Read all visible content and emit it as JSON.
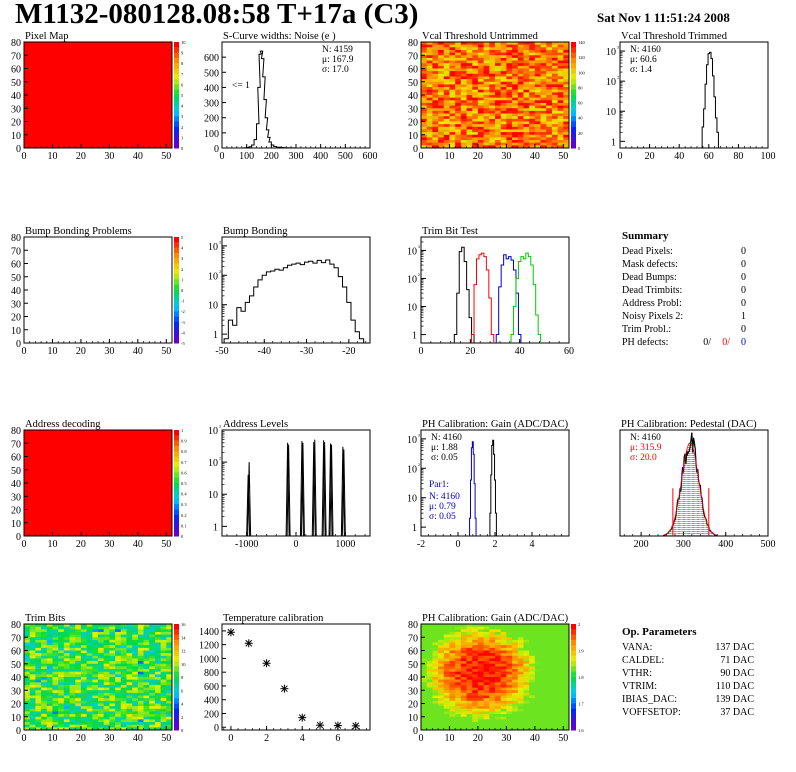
{
  "header": {
    "title": "M1132-080128.08:58 T+17a (C3)",
    "date": "Sat Nov  1 11:51:24 2008"
  },
  "colors": {
    "red": "#ff0000",
    "blue": "#0000cc",
    "green": "#00cc00",
    "black": "#000000",
    "white": "#ffffff"
  },
  "palette_names": [
    "violet",
    "blue",
    "cyan",
    "green",
    "yellow",
    "orange",
    "red"
  ],
  "chart_data": [
    {
      "id": "pixel-map",
      "type": "heatmap",
      "title": "Pixel Map",
      "xlim": [
        0,
        52
      ],
      "ylim": [
        0,
        80
      ],
      "xticks": [
        0,
        10,
        20,
        30,
        40,
        50
      ],
      "yticks": [
        0,
        10,
        20,
        30,
        40,
        50,
        60,
        70,
        80
      ],
      "fill": "uniform",
      "level": 1.0,
      "zticks": [
        "10",
        "9",
        "8",
        "7",
        "6",
        "5",
        "4",
        "3",
        "2",
        "1",
        "0"
      ]
    },
    {
      "id": "scurve-noise",
      "type": "line",
      "title": "S-Curve widths: Noise (e )",
      "xlim": [
        0,
        600
      ],
      "ylim": [
        0,
        700
      ],
      "log": false,
      "xticks": [
        0,
        100,
        200,
        300,
        400,
        500,
        600
      ],
      "yticks": [
        0,
        100,
        200,
        300,
        400,
        500,
        600
      ],
      "stats": [
        "N: 4159",
        "μ: 167.9",
        "σ: 17.0"
      ],
      "annotation": "<= 1",
      "bins": [
        [
          95,
          2
        ],
        [
          105,
          4
        ],
        [
          115,
          8
        ],
        [
          125,
          20
        ],
        [
          135,
          55
        ],
        [
          145,
          160
        ],
        [
          150,
          400
        ],
        [
          155,
          620
        ],
        [
          160,
          640
        ],
        [
          165,
          590
        ],
        [
          170,
          470
        ],
        [
          175,
          320
        ],
        [
          180,
          200
        ],
        [
          185,
          120
        ],
        [
          190,
          70
        ],
        [
          195,
          40
        ],
        [
          205,
          20
        ],
        [
          215,
          10
        ],
        [
          230,
          5
        ],
        [
          260,
          2
        ],
        [
          290,
          1
        ]
      ],
      "color": "#000000"
    },
    {
      "id": "vcal-untrimmed",
      "type": "heatmap",
      "title": "Vcal Threshold Untrimmed",
      "xlim": [
        0,
        52
      ],
      "ylim": [
        0,
        80
      ],
      "xticks": [
        0,
        10,
        20,
        30,
        40,
        50
      ],
      "yticks": [
        0,
        10,
        20,
        30,
        40,
        50,
        60,
        70,
        80
      ],
      "fill": "noise-hot",
      "zticks": [
        "140",
        "120",
        "100",
        "80",
        "60",
        "40",
        "20",
        "0"
      ]
    },
    {
      "id": "vcal-trimmed",
      "type": "line",
      "title": "Vcal Threshold Trimmed",
      "xlim": [
        0,
        100
      ],
      "log": true,
      "logrange": [
        0.6,
        2000
      ],
      "xticks": [
        0,
        20,
        40,
        60,
        80,
        100
      ],
      "yticks": [
        "1",
        "10",
        "10²",
        "10³"
      ],
      "stats": [
        "N: 4160",
        "μ: 60.6",
        "σ:  1.4"
      ],
      "bins": [
        [
          56,
          3
        ],
        [
          57,
          12
        ],
        [
          58,
          80
        ],
        [
          59,
          350
        ],
        [
          60,
          820
        ],
        [
          61,
          900
        ],
        [
          62,
          560
        ],
        [
          63,
          150
        ],
        [
          64,
          30
        ],
        [
          65,
          6
        ],
        [
          66,
          2
        ]
      ],
      "color": "#000000"
    },
    {
      "id": "bump-problems",
      "type": "heatmap",
      "title": "Bump Bonding Problems",
      "xlim": [
        0,
        52
      ],
      "ylim": [
        0,
        80
      ],
      "xticks": [
        0,
        10,
        20,
        30,
        40,
        50
      ],
      "yticks": [
        0,
        10,
        20,
        30,
        40,
        50,
        60,
        70,
        80
      ],
      "fill": "empty",
      "zticks": [
        "5",
        "4",
        "3",
        "2",
        "1",
        "0",
        "-1",
        "-2",
        "-3",
        "-4",
        "-5"
      ]
    },
    {
      "id": "bump-bonding",
      "type": "line",
      "title": "Bump Bonding",
      "xlim": [
        -50,
        -15
      ],
      "log": true,
      "logrange": [
        0.5,
        2000
      ],
      "xticks": [
        -50,
        -40,
        -30,
        -20
      ],
      "yticks": [
        "1",
        "10",
        "10²",
        "10³"
      ],
      "bins": [
        [
          -49,
          0.7
        ],
        [
          -48,
          3
        ],
        [
          -47,
          2
        ],
        [
          -46,
          8
        ],
        [
          -45,
          6
        ],
        [
          -44,
          12
        ],
        [
          -43,
          20
        ],
        [
          -42,
          40
        ],
        [
          -41,
          70
        ],
        [
          -40,
          100
        ],
        [
          -39,
          130
        ],
        [
          -38,
          140
        ],
        [
          -37,
          160
        ],
        [
          -36,
          150
        ],
        [
          -35,
          180
        ],
        [
          -34,
          220
        ],
        [
          -33,
          240
        ],
        [
          -32,
          260
        ],
        [
          -31,
          230
        ],
        [
          -30,
          280
        ],
        [
          -29,
          300
        ],
        [
          -28,
          260
        ],
        [
          -27,
          320
        ],
        [
          -26,
          270
        ],
        [
          -25,
          330
        ],
        [
          -24,
          240
        ],
        [
          -23,
          180
        ],
        [
          -22,
          90
        ],
        [
          -21,
          40
        ],
        [
          -20,
          12
        ],
        [
          -19,
          3
        ],
        [
          -18,
          1.2
        ],
        [
          -17,
          0.7
        ]
      ],
      "color": "#000000"
    },
    {
      "id": "trim-bit-test",
      "type": "line",
      "title": "Trim Bit Test",
      "xlim": [
        0,
        60
      ],
      "log": true,
      "logrange": [
        0.5,
        3000
      ],
      "xticks": [
        0,
        20,
        40,
        60
      ],
      "yticks": [
        "1",
        "10",
        "10²",
        "10³"
      ],
      "series": [
        {
          "color": "#000000",
          "bins": [
            [
              14,
              1
            ],
            [
              15,
              30
            ],
            [
              16,
              900
            ],
            [
              17,
              1300
            ],
            [
              18,
              400
            ],
            [
              19,
              40
            ],
            [
              20,
              4
            ],
            [
              21,
              1
            ]
          ]
        },
        {
          "color": "#ff0000",
          "bins": [
            [
              21,
              1
            ],
            [
              22,
              60
            ],
            [
              23,
              500
            ],
            [
              24,
              700
            ],
            [
              25,
              800
            ],
            [
              26,
              600
            ],
            [
              27,
              200
            ],
            [
              28,
              20
            ],
            [
              29,
              1
            ]
          ]
        },
        {
          "color": "#0000cc",
          "bins": [
            [
              31,
              1
            ],
            [
              32,
              50
            ],
            [
              33,
              300
            ],
            [
              34,
              700
            ],
            [
              35,
              500
            ],
            [
              36,
              600
            ],
            [
              37,
              450
            ],
            [
              38,
              200
            ],
            [
              39,
              30
            ],
            [
              40,
              1
            ]
          ]
        },
        {
          "color": "#00cc00",
          "bins": [
            [
              37,
              1
            ],
            [
              38,
              10
            ],
            [
              39,
              100
            ],
            [
              40,
              400
            ],
            [
              41,
              600
            ],
            [
              42,
              500
            ],
            [
              43,
              800
            ],
            [
              44,
              600
            ],
            [
              45,
              300
            ],
            [
              46,
              60
            ],
            [
              47,
              5
            ],
            [
              48,
              1
            ]
          ]
        }
      ]
    },
    {
      "id": "address-decoding",
      "type": "heatmap",
      "title": "Address decoding",
      "xlim": [
        0,
        52
      ],
      "ylim": [
        0,
        80
      ],
      "xticks": [
        0,
        10,
        20,
        30,
        40,
        50
      ],
      "yticks": [
        0,
        10,
        20,
        30,
        40,
        50,
        60,
        70,
        80
      ],
      "fill": "uniform",
      "level": 1.0,
      "zticks": [
        "1",
        "0.9",
        "0.8",
        "0.7",
        "0.6",
        "0.5",
        "0.4",
        "0.3",
        "0.2",
        "0.1",
        "0"
      ]
    },
    {
      "id": "address-levels",
      "type": "line",
      "title": "Address Levels",
      "xlim": [
        -1500,
        1500
      ],
      "log": true,
      "logrange": [
        0.5,
        1000
      ],
      "xticks": [
        -1000,
        0,
        1000
      ],
      "yticks": [
        "1",
        "10",
        "10²",
        "10³"
      ],
      "spikes": [
        [
          -970,
          40
        ],
        [
          -950,
          100
        ],
        [
          -170,
          400
        ],
        [
          -150,
          350
        ],
        [
          120,
          450
        ],
        [
          140,
          400
        ],
        [
          360,
          420
        ],
        [
          380,
          500
        ],
        [
          560,
          480
        ],
        [
          580,
          420
        ],
        [
          700,
          380
        ],
        [
          720,
          350
        ],
        [
          950,
          300
        ],
        [
          970,
          250
        ]
      ],
      "color": "#000000"
    },
    {
      "id": "ph-gain",
      "type": "line",
      "title": "PH Calibration: Gain (ADC/DAC)",
      "xlim": [
        -2,
        6
      ],
      "log": true,
      "logrange": [
        0.5,
        2000
      ],
      "xticks": [
        -2,
        0,
        2,
        4
      ],
      "yticks": [
        "1",
        "10",
        "10²",
        "10³"
      ],
      "stats": [
        "N: 4160",
        "μ: 1.88",
        "σ: 0.05"
      ],
      "stats2_title": "Par1:",
      "stats2": [
        "N: 4160",
        "μ: 0.79",
        "σ: 0.05"
      ],
      "series": [
        {
          "color": "#000000",
          "bins": [
            [
              1.75,
              3
            ],
            [
              1.8,
              60
            ],
            [
              1.85,
              600
            ],
            [
              1.9,
              900
            ],
            [
              1.95,
              300
            ],
            [
              2.0,
              40
            ],
            [
              2.05,
              3
            ]
          ]
        },
        {
          "color": "#0000cc",
          "bins": [
            [
              0.65,
              2
            ],
            [
              0.7,
              40
            ],
            [
              0.75,
              500
            ],
            [
              0.8,
              800
            ],
            [
              0.85,
              300
            ],
            [
              0.9,
              30
            ],
            [
              0.95,
              2
            ]
          ]
        }
      ]
    },
    {
      "id": "ph-pedestal",
      "type": "line",
      "title": "PH Calibration: Pedestal (DAC)",
      "xlim": [
        150,
        500
      ],
      "log": false,
      "ylim": [
        0,
        100
      ],
      "xticks": [
        200,
        300,
        400,
        500
      ],
      "stats": [
        "N: 4160",
        "μ: 315.9",
        "σ: 20.0"
      ],
      "gauss": {
        "mu": 315.9,
        "sigma": 20.0,
        "peak": 88
      },
      "markers": [
        275,
        360
      ],
      "color": "#000000",
      "fitcolor": "#ff0000"
    },
    {
      "id": "trim-bits",
      "type": "heatmap",
      "title": "Trim Bits",
      "xlim": [
        0,
        52
      ],
      "ylim": [
        0,
        80
      ],
      "xticks": [
        0,
        10,
        20,
        30,
        40,
        50
      ],
      "yticks": [
        0,
        10,
        20,
        30,
        40,
        50,
        60,
        70,
        80
      ],
      "fill": "noise-green",
      "zticks": [
        "16",
        "14",
        "12",
        "10",
        "8",
        "6",
        "4",
        "2",
        "0"
      ]
    },
    {
      "id": "temp-calibration",
      "type": "scatter",
      "title": "Temperature calibration",
      "xlim": [
        -0.5,
        7.8
      ],
      "ylim": [
        -40,
        1500
      ],
      "xticks": [
        0,
        2,
        4,
        6
      ],
      "yticks": [
        0,
        200,
        400,
        600,
        800,
        1000,
        1200,
        1400
      ],
      "points": [
        [
          0,
          1380
        ],
        [
          1,
          1220
        ],
        [
          2,
          930
        ],
        [
          3,
          560
        ],
        [
          4,
          140
        ],
        [
          5,
          30
        ],
        [
          6,
          25
        ],
        [
          7,
          20
        ]
      ],
      "color": "#000000"
    },
    {
      "id": "ph-gain-map",
      "type": "heatmap",
      "title": "PH Calibration: Gain (ADC/DAC)",
      "xlim": [
        0,
        52
      ],
      "ylim": [
        0,
        80
      ],
      "xticks": [
        0,
        10,
        20,
        30,
        40,
        50
      ],
      "yticks": [
        0,
        10,
        20,
        30,
        40,
        50,
        60,
        70,
        80
      ],
      "fill": "blob",
      "zticks": [
        "2",
        "1.9",
        "1.8",
        "1.7",
        "1.6"
      ]
    }
  ],
  "summary": {
    "title": "Summary",
    "rows": [
      {
        "label": "Dead Pixels:",
        "value": "0"
      },
      {
        "label": "Mask defects:",
        "value": "0"
      },
      {
        "label": "Dead Bumps:",
        "value": "0"
      },
      {
        "label": "Dead Trimbits:",
        "value": "0"
      },
      {
        "label": "Address Probl:",
        "value": "0"
      },
      {
        "label": "Noisy Pixels 2:",
        "value": "1"
      },
      {
        "label": "Trim Probl.:",
        "value": "0"
      }
    ],
    "ph_label": "PH defects:",
    "ph_values": [
      "0/",
      "0/",
      "0"
    ]
  },
  "op_params": {
    "title": "Op. Parameters",
    "rows": [
      {
        "label": "VANA:",
        "value": "137 DAC"
      },
      {
        "label": "CALDEL:",
        "value": "71 DAC"
      },
      {
        "label": "VTHR:",
        "value": "90 DAC"
      },
      {
        "label": "VTRIM:",
        "value": "110 DAC"
      },
      {
        "label": "IBIAS_DAC:",
        "value": "139 DAC"
      },
      {
        "label": "VOFFSETOP:",
        "value": "37 DAC"
      }
    ]
  }
}
